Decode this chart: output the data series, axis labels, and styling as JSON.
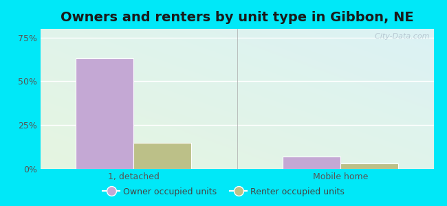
{
  "title": "Owners and renters by unit type in Gibbon, NE",
  "categories": [
    "1, detached",
    "Mobile home"
  ],
  "owner_values": [
    63.0,
    7.0
  ],
  "renter_values": [
    15.0,
    3.0
  ],
  "owner_color": "#c4a8d4",
  "renter_color": "#bcc088",
  "yticks": [
    0,
    25,
    50,
    75
  ],
  "ytick_labels": [
    "0%",
    "25%",
    "50%",
    "75%"
  ],
  "ylim": [
    0,
    80
  ],
  "bar_width": 0.28,
  "background_outer": "#00e8f8",
  "title_fontsize": 14,
  "legend_labels": [
    "Owner occupied units",
    "Renter occupied units"
  ],
  "watermark": "  City-Data.com",
  "group_positions": [
    0.55,
    1.55
  ],
  "xlim": [
    0.1,
    2.0
  ]
}
